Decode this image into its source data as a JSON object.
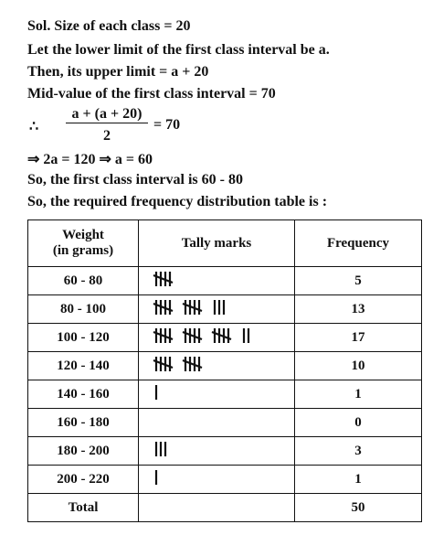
{
  "solution": {
    "lines": [
      "Sol. Size of each class = 20",
      "Let the lower limit of the first class interval be a.",
      "Then, its upper limit = a + 20",
      "Mid-value of the first class interval = 70"
    ],
    "fraction": {
      "symbol": "∴",
      "numerator": "a + (a + 20)",
      "denominator": "2",
      "result": "= 70"
    },
    "after": [
      "⇒  2a = 120 ⇒ a = 60",
      "So, the first class interval is 60 - 80",
      "So, the required frequency distribution table is :"
    ]
  },
  "table": {
    "header": [
      [
        "Weight",
        "(in grams)"
      ],
      "Tally marks",
      "Frequency"
    ],
    "rows": [
      [
        "60 - 80",
        5
      ],
      [
        "80 - 100",
        13
      ],
      [
        "100 - 120",
        17
      ],
      [
        "120 - 140",
        10
      ],
      [
        "140 - 160",
        1
      ],
      [
        "160 - 180",
        0
      ],
      [
        "180 - 200",
        3
      ],
      [
        "200 - 220",
        1
      ]
    ],
    "total": [
      "Total",
      50
    ]
  }
}
